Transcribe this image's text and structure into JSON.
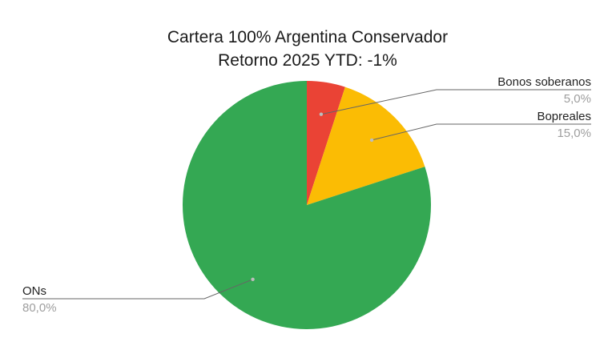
{
  "chart_data": {
    "type": "pie",
    "title": "Cartera 100% Argentina Conservador",
    "subtitle": "Retorno 2025 YTD: -1%",
    "categories": [
      "Bonos soberanos",
      "Bopreales",
      "ONs"
    ],
    "values": [
      5.0,
      15.0,
      80.0
    ],
    "value_labels": [
      "5,0%",
      "15,0%",
      "80,0%"
    ],
    "colors": [
      "#ea4335",
      "#fbbc04",
      "#34a853"
    ],
    "start_angle_deg": 0,
    "direction": "clockwise",
    "legend": "none",
    "label_sides": [
      "right",
      "right",
      "left"
    ]
  }
}
